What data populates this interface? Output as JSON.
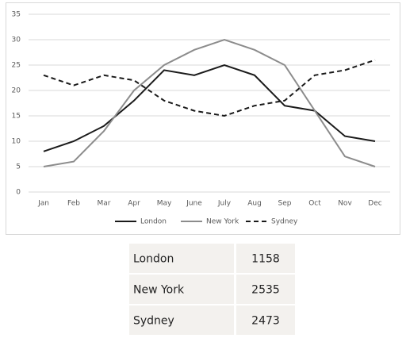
{
  "chart_data": {
    "type": "line",
    "categories": [
      "Jan",
      "Feb",
      "Mar",
      "Apr",
      "May",
      "June",
      "July",
      "Aug",
      "Sep",
      "Oct",
      "Nov",
      "Dec"
    ],
    "series": [
      {
        "name": "London",
        "color": "#1a1a1a",
        "dash": false,
        "values": [
          8,
          10,
          13,
          18,
          24,
          23,
          25,
          23,
          17,
          16,
          11,
          10
        ]
      },
      {
        "name": "New York",
        "color": "#8c8c8c",
        "dash": false,
        "values": [
          5,
          6,
          12,
          20,
          25,
          28,
          30,
          28,
          25,
          16,
          7,
          5
        ]
      },
      {
        "name": "Sydney",
        "color": "#1a1a1a",
        "dash": true,
        "values": [
          23,
          21,
          23,
          22,
          18,
          16,
          15,
          17,
          18,
          23,
          24,
          26
        ]
      }
    ],
    "ylim": [
      0,
      35
    ],
    "yticks": [
      0,
      5,
      10,
      15,
      20,
      25,
      30,
      35
    ],
    "grid": true,
    "legend": "bottom"
  },
  "table": {
    "rows": [
      [
        "London",
        1158
      ],
      [
        "New York",
        2535
      ],
      [
        "Sydney",
        2473
      ]
    ]
  }
}
